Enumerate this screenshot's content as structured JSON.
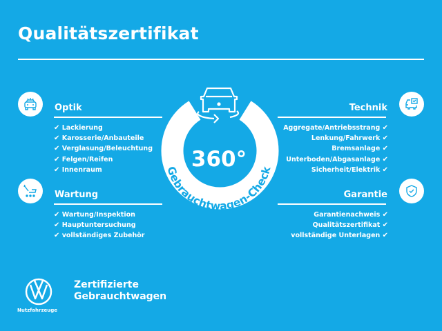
{
  "header": {
    "title": "Qualitätszertifikat"
  },
  "center": {
    "degrees": "360°",
    "arc_text": "Gebrauchtwagen-Check",
    "icon": "car-rotate-icon"
  },
  "sections": {
    "optik": {
      "title": "Optik",
      "icon": "car-lights-icon",
      "items": [
        "Lackierung",
        "Karosserie/Anbauteile",
        "Verglasung/Beleuchtung",
        "Felgen/Reifen",
        "Innenraum"
      ]
    },
    "wartung": {
      "title": "Wartung",
      "icon": "wrench-van-icon",
      "items": [
        "Wartung/Inspektion",
        "Hauptuntersuchung",
        "vollständiges Zubehör"
      ]
    },
    "technik": {
      "title": "Technik",
      "icon": "van-checklist-icon",
      "items": [
        "Aggregate/Antriebsstrang",
        "Lenkung/Fahrwerk",
        "Bremsanlage",
        "Unterboden/Abgasanlage",
        "Sicherheit/Elektrik"
      ]
    },
    "garantie": {
      "title": "Garantie",
      "icon": "shield-check-icon",
      "items": [
        "Garantienachweis",
        "Qualitätszertifikat",
        "vollständige Unterlagen"
      ]
    }
  },
  "check": "✔",
  "footer": {
    "line1": "Zertifizierte",
    "line2": "Gebrauchtwagen",
    "brand": "Nutzfahrzeuge",
    "logo": "VW"
  },
  "colors": {
    "background": "#14a9e6",
    "foreground": "#ffffff"
  }
}
